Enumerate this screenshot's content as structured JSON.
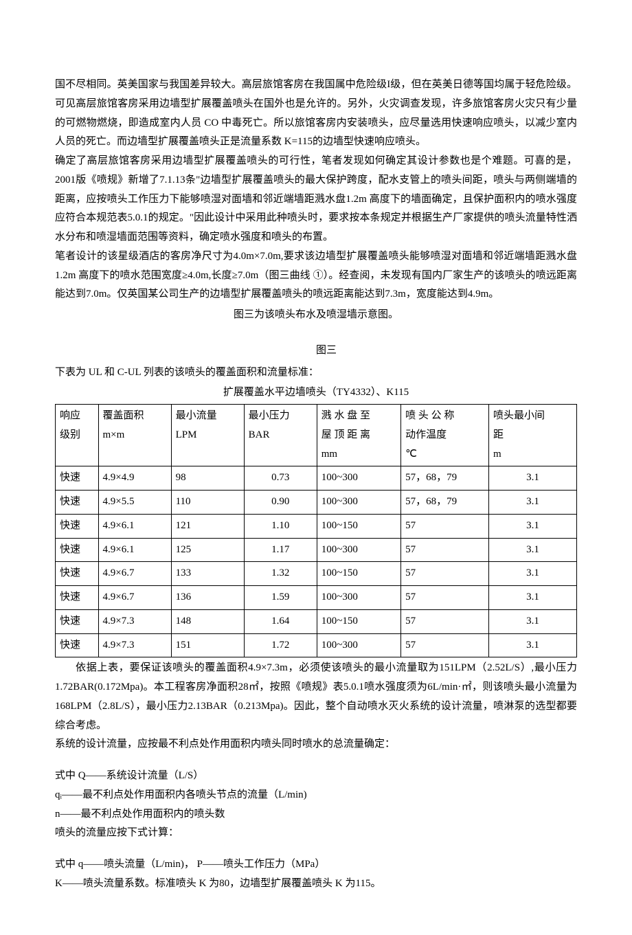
{
  "p1": "国不尽相同。英美国家与我国差异较大。高层旅馆客房在我国属中危险级I级，但在英美日德等国均属于轻危险级。可见高层旅馆客房采用边墙型扩展覆盖喷头在国外也是允许的。另外，火灾调查发现，许多旅馆客房火灾只有少量的可燃物燃烧，即造成室内人员 CO 中毒死亡。所以旅馆客房内安装喷头，应尽量选用快速响应喷头，以减少室内人员的死亡。而边墙型扩展覆盖喷头正是流量系数 K=115的边墙型快速响应喷头。",
  "p2": "确定了高层旅馆客房采用边墙型扩展覆盖喷头的可行性，笔者发现如何确定其设计参数也是个难题。可喜的是，2001版《喷规》新增了7.1.13条\"边墙型扩展覆盖喷头的最大保护跨度，配水支管上的喷头间距，喷头与两侧端墙的距离，应按喷头工作压力下能够喷湿对面墙和邻近端墙距溅水盘1.2m 高度下的墙面确定，且保护面积内的喷水强度应符合本规范表5.0.1的规定。\"因此设计中采用此种喷头时，要求按本条规定并根据生产厂家提供的喷头流量特性洒水分布和喷湿墙面范围等资料，确定喷水强度和喷头的布置。",
  "p3": "笔者设计的该星级酒店的客房净尺寸为4.0m×7.0m,要求该边墙型扩展覆盖喷头能够喷湿对面墙和邻近端墙距溅水盘1.2m 高度下的喷水范围宽度≥4.0m,长度≥7.0m（图三曲线 ①）。经查阅，未发现有国内厂家生产的该喷头的喷远距离能达到7.0m。仅英国某公司生产的边墙型扩展覆盖喷头的喷远距离能达到7.3m，宽度能达到4.9m。",
  "figcap": "图三为该喷头布水及喷湿墙示意图。",
  "figlabel": "图三",
  "p4": "下表为 UL 和 C-UL 列表的该喷头的覆盖面积和流量标准：",
  "tablecap": "扩展覆盖水平边墙喷头（TY4332）、K115",
  "headers": {
    "h1a": "响应",
    "h1b": "级别",
    "h2a": "覆盖面积",
    "h2b": "m×m",
    "h3a": "最小流量",
    "h3b": "LPM",
    "h4a": "最小压力",
    "h4b": "BAR",
    "h5a": "溅 水 盘 至",
    "h5b": "屋 顶 距 离",
    "h5c": "mm",
    "h6a": "喷 头 公 称",
    "h6b": "动作温度",
    "h6c": "℃",
    "h7a": "喷头最小间",
    "h7b": "距",
    "h7c": "m"
  },
  "rows": [
    {
      "r": "快速",
      "a": "4.9×4.9",
      "f": "98",
      "p": "0.73",
      "d": "100~300",
      "t": "57，68，79",
      "s": "3.1"
    },
    {
      "r": "快速",
      "a": "4.9×5.5",
      "f": "110",
      "p": "0.90",
      "d": "100~300",
      "t": "57，68，79",
      "s": "3.1"
    },
    {
      "r": "快速",
      "a": "4.9×6.1",
      "f": "121",
      "p": "1.10",
      "d": "100~150",
      "t": "57",
      "s": "3.1"
    },
    {
      "r": "快速",
      "a": "4.9×6.1",
      "f": "125",
      "p": "1.17",
      "d": "100~300",
      "t": "57",
      "s": "3.1"
    },
    {
      "r": "快速",
      "a": "4.9×6.7",
      "f": "133",
      "p": "1.32",
      "d": "100~150",
      "t": "57",
      "s": "3.1"
    },
    {
      "r": "快速",
      "a": "4.9×6.7",
      "f": "136",
      "p": "1.59",
      "d": "100~300",
      "t": "57",
      "s": "3.1"
    },
    {
      "r": "快速",
      "a": "4.9×7.3",
      "f": "148",
      "p": "1.64",
      "d": "100~150",
      "t": "57",
      "s": "3.1"
    },
    {
      "r": "快速",
      "a": "4.9×7.3",
      "f": "151",
      "p": "1.72",
      "d": "100~300",
      "t": "57",
      "s": "3.1"
    }
  ],
  "p5": "依据上表，要保证该喷头的覆盖面积4.9×7.3m，必须使该喷头的最小流量取为151LPM（2.52L/S）,最小压力1.72BAR(0.172Mpa)。本工程客房净面积28㎡，按照《喷规》表5.0.1喷水强度须为6L/min·㎡，则该喷头最小流量为168LPM（2.8L/S），最小压力2.13BAR（0.213Mpa)。因此，整个自动喷水灭火系统的设计流量，喷淋泵的选型都要综合考虑。",
  "p6": "系统的设计流量，应按最不利点处作用面积内喷头同时喷水的总流量确定：",
  "f1": "式中 Q——系统设计流量（L/S）",
  "f2": "qᵢ——最不利点处作用面积内各喷头节点的流量（L/min)",
  "f3": "n——最不利点处作用面积内的喷头数",
  "f4": "喷头的流量应按下式计算：",
  "f5": "式中 q——喷头流量（L/min)，  P——喷头工作压力（MPa）",
  "f6": "K——喷头流量系数。标准喷头 K 为80，边墙型扩展覆盖喷头 K 为115。"
}
